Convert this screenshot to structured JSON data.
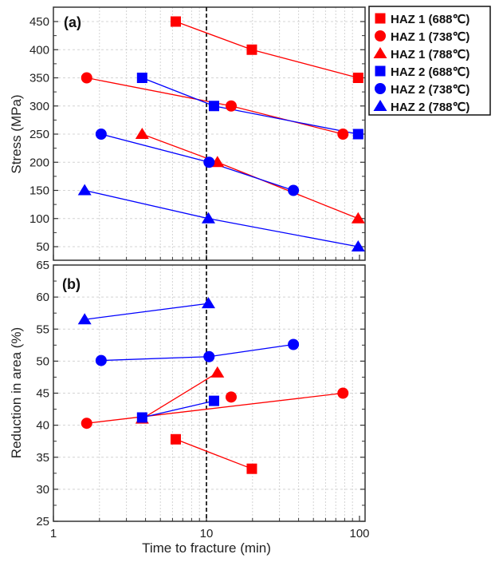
{
  "chart_data": {
    "type": "scatter",
    "xlabel": "Time to fracture (min)",
    "xscale": "log",
    "xlim": [
      1,
      110
    ],
    "x_tick_labels": [
      "1",
      "10",
      "100"
    ],
    "reference_line_x": 10,
    "legend": {
      "placement": "right-top",
      "entries": [
        "HAZ 1 (688℃)",
        "HAZ 1 (738℃)",
        "HAZ 1 (788℃)",
        "HAZ 2 (688℃)",
        "HAZ 2 (738℃)",
        "HAZ 2 (788℃)"
      ]
    },
    "colors": {
      "HAZ 1": "#ff0000",
      "HAZ 2": "#0000ff",
      "reference": "#000000"
    },
    "panels": [
      {
        "label": "(a)",
        "ylabel": "Stress (MPa)",
        "ylim": [
          40,
          475
        ],
        "y_tick_labels": [
          "50",
          "100",
          "150",
          "200",
          "250",
          "300",
          "350",
          "400",
          "450"
        ],
        "series": [
          {
            "name": "HAZ 1 (688℃)",
            "marker": "square",
            "color": "#ff0000",
            "x": [
              6.3,
              19.8,
              98
            ],
            "y": [
              450,
              400,
              350
            ]
          },
          {
            "name": "HAZ 1 (738℃)",
            "marker": "circle",
            "color": "#ff0000",
            "x": [
              1.65,
              14.5,
              78
            ],
            "y": [
              350,
              300,
              250
            ]
          },
          {
            "name": "HAZ 1 (788℃)",
            "marker": "triangle",
            "color": "#ff0000",
            "x": [
              3.8,
              11.8,
              98
            ],
            "y": [
              250,
              200,
              100
            ]
          },
          {
            "name": "HAZ 2 (688℃)",
            "marker": "square",
            "color": "#0000ff",
            "x": [
              3.8,
              11.2,
              98
            ],
            "y": [
              350,
              300,
              250
            ]
          },
          {
            "name": "HAZ 2 (738℃)",
            "marker": "circle",
            "color": "#0000ff",
            "x": [
              2.05,
              10.4,
              37
            ],
            "y": [
              250,
              200,
              150
            ]
          },
          {
            "name": "HAZ 2 (788℃)",
            "marker": "triangle",
            "color": "#0000ff",
            "x": [
              1.6,
              10.3,
              98
            ],
            "y": [
              150,
              100,
              50
            ]
          }
        ]
      },
      {
        "label": "(b)",
        "ylabel": "Reduction in area (%)",
        "ylim": [
          25,
          65
        ],
        "y_tick_labels": [
          "25",
          "30",
          "35",
          "40",
          "45",
          "50",
          "55",
          "60",
          "65"
        ],
        "series": [
          {
            "name": "HAZ 1 (688℃)",
            "marker": "square",
            "color": "#ff0000",
            "x": [
              6.3,
              19.8
            ],
            "y": [
              37.8,
              33.2
            ]
          },
          {
            "name": "HAZ 1 (738℃)",
            "marker": "circle",
            "color": "#ff0000",
            "x": [
              1.65,
              14.5,
              78
            ],
            "y": [
              40.3,
              44.4,
              45.0
            ],
            "line_skips_middle": true
          },
          {
            "name": "HAZ 1 (788℃)",
            "marker": "triangle",
            "color": "#ff0000",
            "x": [
              3.8,
              11.8
            ],
            "y": [
              41.0,
              48.2
            ]
          },
          {
            "name": "HAZ 2 (688℃)",
            "marker": "square",
            "color": "#0000ff",
            "x": [
              3.8,
              11.2
            ],
            "y": [
              41.2,
              43.8
            ]
          },
          {
            "name": "HAZ 2 (738℃)",
            "marker": "circle",
            "color": "#0000ff",
            "x": [
              2.05,
              10.4,
              37
            ],
            "y": [
              50.1,
              50.7,
              52.6
            ]
          },
          {
            "name": "HAZ 2 (788℃)",
            "marker": "triangle",
            "color": "#0000ff",
            "x": [
              1.6,
              10.3
            ],
            "y": [
              56.5,
              59.0
            ]
          }
        ]
      }
    ]
  }
}
